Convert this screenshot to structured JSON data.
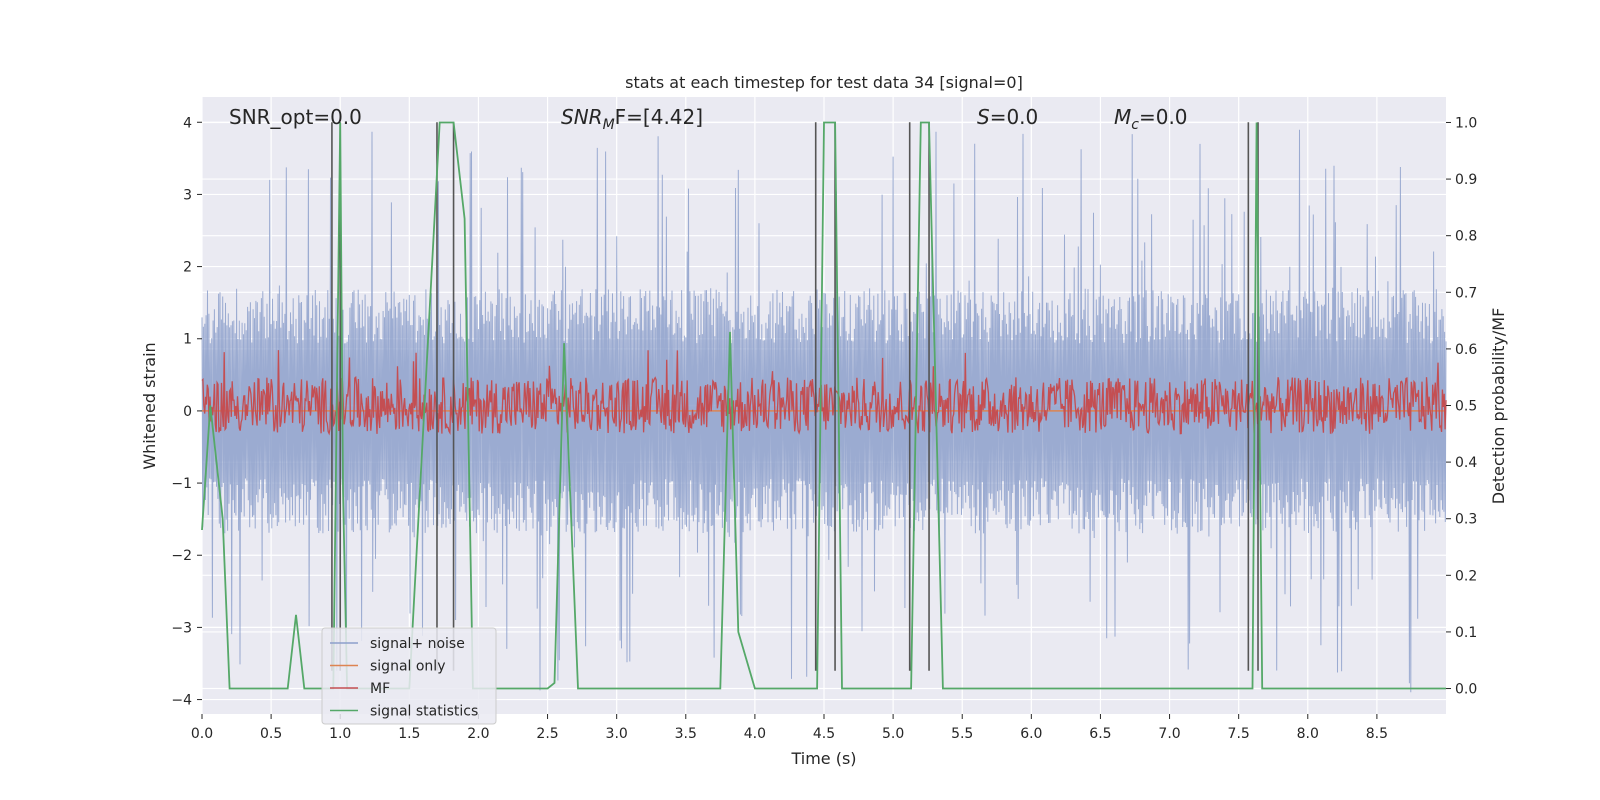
{
  "chart_data": {
    "type": "line",
    "title": "stats at each timestep for test data 34 [signal=0]",
    "xlabel": "Time (s)",
    "ylabel_left": "Whitened strain",
    "ylabel_right": "Detection probability/MF",
    "xlim": [
      0.0,
      9.0
    ],
    "ylim_left": [
      -4.2,
      4.35
    ],
    "ylim_right": [
      -0.045,
      1.045
    ],
    "x_ticks": [
      0.0,
      0.5,
      1.0,
      1.5,
      2.0,
      2.5,
      3.0,
      3.5,
      4.0,
      4.5,
      5.0,
      5.5,
      6.0,
      6.5,
      7.0,
      7.5,
      8.0,
      8.5
    ],
    "x_tick_labels": [
      "0.0",
      "0.5",
      "1.0",
      "1.5",
      "2.0",
      "2.5",
      "3.0",
      "3.5",
      "4.0",
      "4.5",
      "5.0",
      "5.5",
      "6.0",
      "6.5",
      "7.0",
      "7.5",
      "8.0",
      "8.5"
    ],
    "y_ticks_left": [
      -4,
      -3,
      -2,
      -1,
      0,
      1,
      2,
      3,
      4
    ],
    "y_tick_labels_left": [
      "−4",
      "−3",
      "−2",
      "−1",
      "0",
      "1",
      "2",
      "3",
      "4"
    ],
    "y_ticks_right": [
      0.0,
      0.1,
      0.2,
      0.3,
      0.4,
      0.5,
      0.6,
      0.7,
      0.8,
      0.9,
      1.0
    ],
    "y_tick_labels_right": [
      "0.0",
      "0.1",
      "0.2",
      "0.3",
      "0.4",
      "0.5",
      "0.6",
      "0.7",
      "0.8",
      "0.9",
      "1.0"
    ],
    "grid": true,
    "legend_position": "lower-left",
    "annotations": {
      "snr_opt": "SNR_opt=0.0",
      "snr_mf_prefix": "SNR",
      "snr_mf_sub": "M",
      "snr_mf_suffix": "F=[4.42]",
      "s_label": "S",
      "s_value": "=0.0",
      "mc_label": "M",
      "mc_sub": "c",
      "mc_value": "=0.0"
    },
    "series": [
      {
        "name": "signal+ noise",
        "axis": "left",
        "color": "#8da0cb",
        "style": "dense noise",
        "amplitude_typical": 1.7,
        "amplitude_peak": 3.9
      },
      {
        "name": "signal only",
        "axis": "left",
        "color": "#dd8452",
        "style": "flat",
        "values": [
          0.0,
          0.0
        ]
      },
      {
        "name": "MF",
        "axis": "right",
        "color": "#c44e52",
        "style": "dense noise",
        "baseline": 0.5,
        "spread": 0.05,
        "peak": 0.6
      },
      {
        "name": "signal statistics",
        "axis": "right",
        "color": "#55a868",
        "x": [
          0.0,
          0.06,
          0.15,
          0.2,
          0.25,
          0.45,
          0.62,
          0.68,
          0.74,
          0.95,
          1.0,
          1.02,
          1.05,
          1.08,
          1.5,
          1.72,
          1.76,
          1.82,
          1.9,
          1.96,
          2.5,
          2.55,
          2.62,
          2.72,
          3.75,
          3.82,
          3.88,
          4.0,
          4.45,
          4.5,
          4.58,
          4.63,
          5.13,
          5.2,
          5.26,
          5.36,
          5.45,
          7.55,
          7.6,
          7.63,
          7.67,
          7.72,
          9.0
        ],
        "values": [
          0.28,
          0.5,
          0.3,
          0.0,
          0.0,
          0.0,
          0.0,
          0.13,
          0.0,
          0.0,
          1.0,
          0.35,
          0.0,
          0.0,
          0.0,
          1.0,
          1.0,
          1.0,
          0.83,
          0.0,
          0.0,
          0.01,
          0.61,
          0.0,
          0.0,
          0.63,
          0.1,
          0.0,
          0.0,
          1.0,
          1.0,
          0.0,
          0.0,
          1.0,
          1.0,
          0.0,
          0.0,
          0.0,
          0.0,
          1.0,
          0.0,
          0.0,
          0.0
        ]
      }
    ],
    "vertical_markers": {
      "color": "#555555",
      "x": [
        0.94,
        1.0,
        1.7,
        1.82,
        4.44,
        4.58,
        5.12,
        5.26,
        7.57,
        7.64
      ],
      "top": 4.0,
      "bottom": -3.6
    },
    "legend": [
      {
        "label": "signal+ noise",
        "color": "#8da0cb"
      },
      {
        "label": "signal only",
        "color": "#dd8452"
      },
      {
        "label": "MF",
        "color": "#c44e52"
      },
      {
        "label": "signal statistics",
        "color": "#55a868"
      }
    ]
  }
}
